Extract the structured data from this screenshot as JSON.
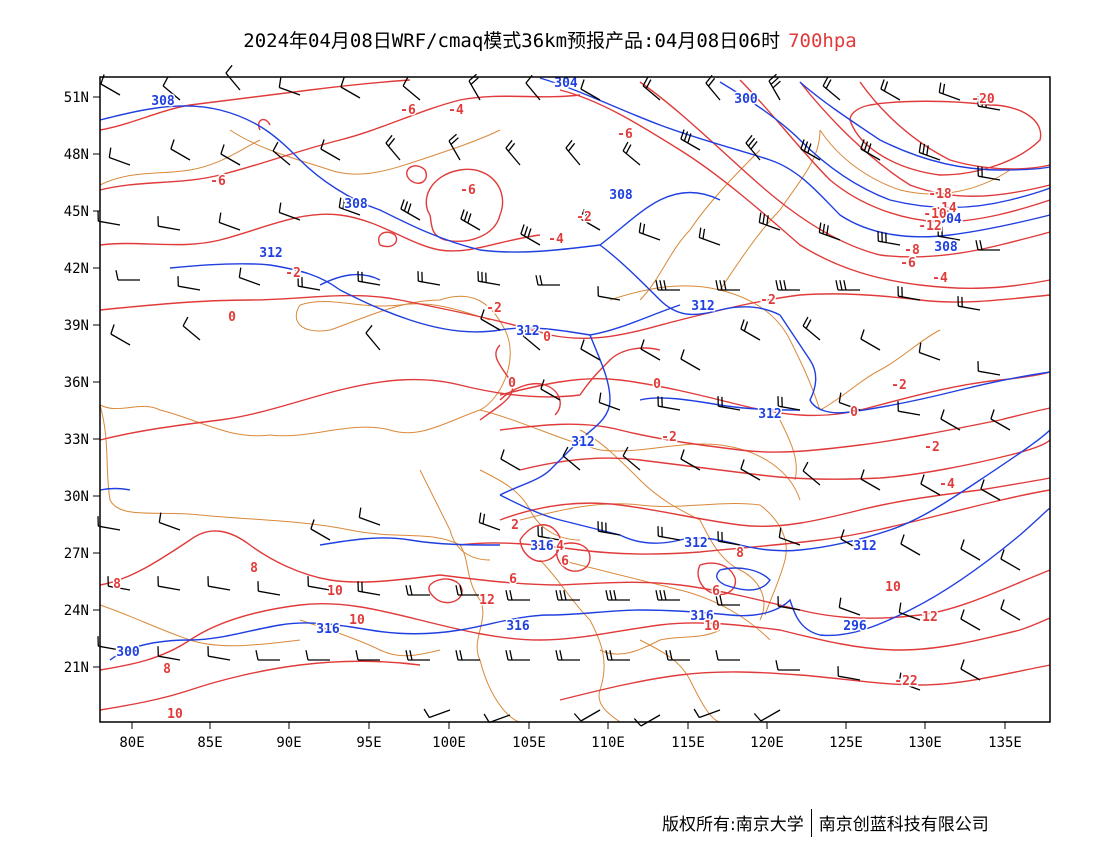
{
  "title": {
    "main": "2024年04月08日WRF/cmaq模式36km预报产品:04月08日06时",
    "level": "700hpa"
  },
  "colors": {
    "temperature": "#e03a3a",
    "height": "#1f3fe0",
    "borders": "#d9893a",
    "wind": "#000000",
    "level_text": "#e03a3a"
  },
  "map": {
    "lat_range": [
      18,
      52
    ],
    "lon_range": [
      78,
      138
    ],
    "lat_labels": [
      "51N",
      "48N",
      "45N",
      "42N",
      "39N",
      "36N",
      "33N",
      "30N",
      "27N",
      "24N",
      "21N"
    ],
    "lon_labels": [
      "80E",
      "85E",
      "90E",
      "95E",
      "100E",
      "105E",
      "110E",
      "115E",
      "120E",
      "125E",
      "130E",
      "135E"
    ]
  },
  "height_labels": [
    "304",
    "308",
    "300",
    "308",
    "308",
    "312",
    "312",
    "312",
    "312",
    "312",
    "312",
    "312",
    "316",
    "316",
    "316",
    "316",
    "296",
    "300",
    "304",
    "308"
  ],
  "temp_labels": [
    "-6",
    "-4",
    "-6",
    "-6",
    "-6",
    "-2",
    "-4",
    "-2",
    "-2",
    "-2",
    "0",
    "0",
    "0",
    "0",
    "-2",
    "0",
    "-2",
    "-2",
    "-4",
    "2",
    "4",
    "6",
    "6",
    "8",
    "8",
    "10",
    "8",
    "10",
    "12",
    "6",
    "10",
    "8",
    "10",
    "12",
    "10",
    "-22",
    "-20",
    "-18",
    "-14",
    "-12",
    "-10",
    "-8",
    "-6",
    "-4"
  ],
  "footer": {
    "left": "版权所有:南京大学",
    "right": "南京创蓝科技有限公司"
  }
}
